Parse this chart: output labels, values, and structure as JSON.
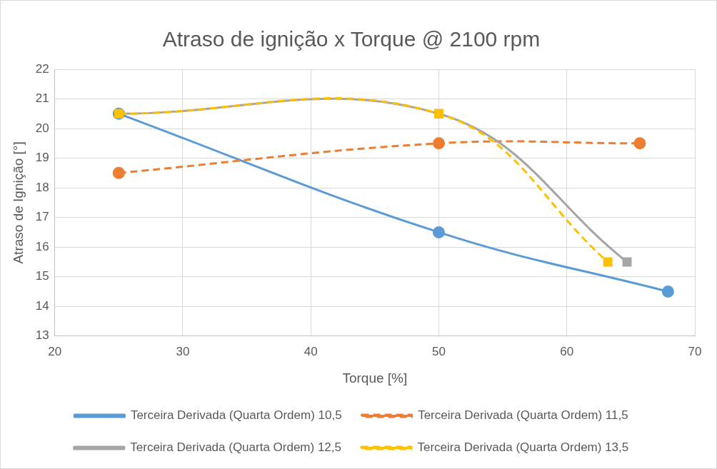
{
  "chart_data": {
    "type": "line",
    "title": "Atraso de ignição x Torque @ 2100 rpm",
    "xlabel": "Torque [%]",
    "ylabel": "Atraso de Ignição [°]",
    "xlim": [
      20,
      70
    ],
    "xticks": [
      20,
      30,
      40,
      50,
      60,
      70
    ],
    "ylim": [
      13,
      22
    ],
    "yticks": [
      13,
      14,
      15,
      16,
      17,
      18,
      19,
      20,
      21,
      22
    ],
    "grid": true,
    "legend": "bottom",
    "series": [
      {
        "name": "Terceira Derivada (Quarta Ordem) 10,5",
        "color": "#5b9bd5",
        "x": [
          25,
          50,
          67.9
        ],
        "values": [
          20.5,
          16.5,
          14.5
        ],
        "marker": "circle",
        "line_style": "solid"
      },
      {
        "name": "Terceira Derivada (Quarta Ordem) 11,5",
        "color": "#ed7d31",
        "x": [
          25,
          50,
          65.7
        ],
        "values": [
          18.5,
          19.5,
          19.5
        ],
        "marker": "circle",
        "line_style": "dashed"
      },
      {
        "name": "Terceira Derivada (Quarta Ordem) 12,5",
        "color": "#a5a5a5",
        "x": [
          25,
          50,
          64.7
        ],
        "values": [
          20.5,
          20.5,
          15.5
        ],
        "marker": "square",
        "line_style": "solid"
      },
      {
        "name": "Terceira Derivada (Quarta Ordem) 13,5",
        "color": "#ffc000",
        "x": [
          25,
          50,
          63.2
        ],
        "values": [
          20.5,
          20.5,
          15.5
        ],
        "marker": "square",
        "line_style": "dashed"
      }
    ]
  }
}
